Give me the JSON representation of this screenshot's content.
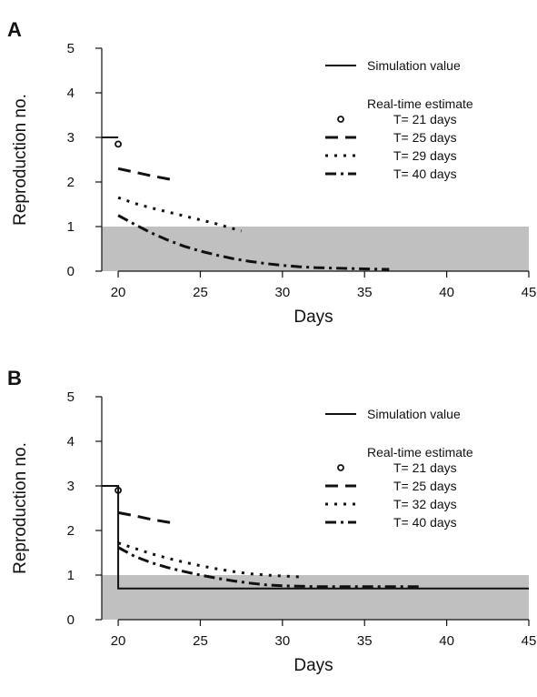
{
  "chart_data": [
    {
      "panel_label": "A",
      "type": "line",
      "xlabel": "Days",
      "ylabel": "Reproduction no.",
      "xlim": [
        19,
        45
      ],
      "ylim": [
        0,
        5
      ],
      "x_ticks": [
        20,
        25,
        30,
        35,
        40,
        45
      ],
      "y_ticks": [
        0,
        1,
        2,
        3,
        4,
        5
      ],
      "shaded_band": {
        "y_from": 0,
        "y_to": 1,
        "color": "#c0c0c0"
      },
      "legend": {
        "position": "top-right",
        "simulation_label": "Simulation value",
        "estimate_header": "Real-time estimate",
        "entries": [
          "T= 21 days",
          "T= 25 days",
          "T= 29 days",
          "T= 40 days"
        ]
      },
      "simulation": {
        "x": [
          19,
          20
        ],
        "y": [
          3,
          3
        ]
      },
      "series": [
        {
          "name": "T= 21 days",
          "style": "point",
          "x": [
            20
          ],
          "y": [
            2.85
          ]
        },
        {
          "name": "T= 25 days",
          "style": "dashed",
          "x": [
            20,
            21,
            22,
            23.3
          ],
          "y": [
            2.3,
            2.22,
            2.14,
            2.05
          ]
        },
        {
          "name": "T= 29 days",
          "style": "dotted",
          "x": [
            20,
            21,
            22,
            23,
            24,
            25,
            26,
            27.5
          ],
          "y": [
            1.65,
            1.52,
            1.42,
            1.33,
            1.24,
            1.15,
            1.06,
            0.9
          ]
        },
        {
          "name": "T= 40 days",
          "style": "dashdot",
          "x": [
            20,
            21,
            22,
            23,
            24,
            25,
            26,
            27,
            28,
            29,
            30,
            31,
            32,
            33,
            34,
            35,
            36.5
          ],
          "y": [
            1.25,
            1.05,
            0.86,
            0.7,
            0.56,
            0.45,
            0.36,
            0.28,
            0.22,
            0.17,
            0.13,
            0.1,
            0.08,
            0.07,
            0.06,
            0.05,
            0.04
          ]
        }
      ]
    },
    {
      "panel_label": "B",
      "type": "line",
      "xlabel": "Days",
      "ylabel": "Reproduction no.",
      "xlim": [
        19,
        45
      ],
      "ylim": [
        0,
        5
      ],
      "x_ticks": [
        20,
        25,
        30,
        35,
        40,
        45
      ],
      "y_ticks": [
        0,
        1,
        2,
        3,
        4,
        5
      ],
      "shaded_band": {
        "y_from": 0,
        "y_to": 1,
        "color": "#c0c0c0"
      },
      "legend": {
        "position": "top-right",
        "simulation_label": "Simulation value",
        "estimate_header": "Real-time estimate",
        "entries": [
          "T= 21 days",
          "T= 25 days",
          "T= 32 days",
          "T= 40 days"
        ]
      },
      "simulation": {
        "x": [
          19,
          20,
          20,
          45
        ],
        "y": [
          3,
          3,
          0.7,
          0.7
        ]
      },
      "series": [
        {
          "name": "T= 21 days",
          "style": "point",
          "x": [
            20
          ],
          "y": [
            2.9
          ]
        },
        {
          "name": "T= 25 days",
          "style": "dashed",
          "x": [
            20,
            21,
            22,
            23.3
          ],
          "y": [
            2.4,
            2.33,
            2.25,
            2.17
          ]
        },
        {
          "name": "T= 32 days",
          "style": "dotted",
          "x": [
            20,
            21,
            22,
            23,
            24,
            25,
            26,
            27,
            28,
            29,
            30,
            31
          ],
          "y": [
            1.72,
            1.6,
            1.48,
            1.38,
            1.29,
            1.21,
            1.14,
            1.08,
            1.03,
            1.0,
            0.98,
            0.96
          ]
        },
        {
          "name": "T= 40 days",
          "style": "dashdot",
          "x": [
            20,
            21,
            22,
            23,
            24,
            25,
            26,
            27,
            28,
            29,
            30,
            31,
            32,
            33,
            34,
            35,
            36,
            37,
            38.5
          ],
          "y": [
            1.62,
            1.42,
            1.28,
            1.17,
            1.08,
            1.0,
            0.93,
            0.87,
            0.82,
            0.78,
            0.76,
            0.75,
            0.74,
            0.74,
            0.74,
            0.74,
            0.74,
            0.74,
            0.74
          ]
        }
      ]
    }
  ]
}
